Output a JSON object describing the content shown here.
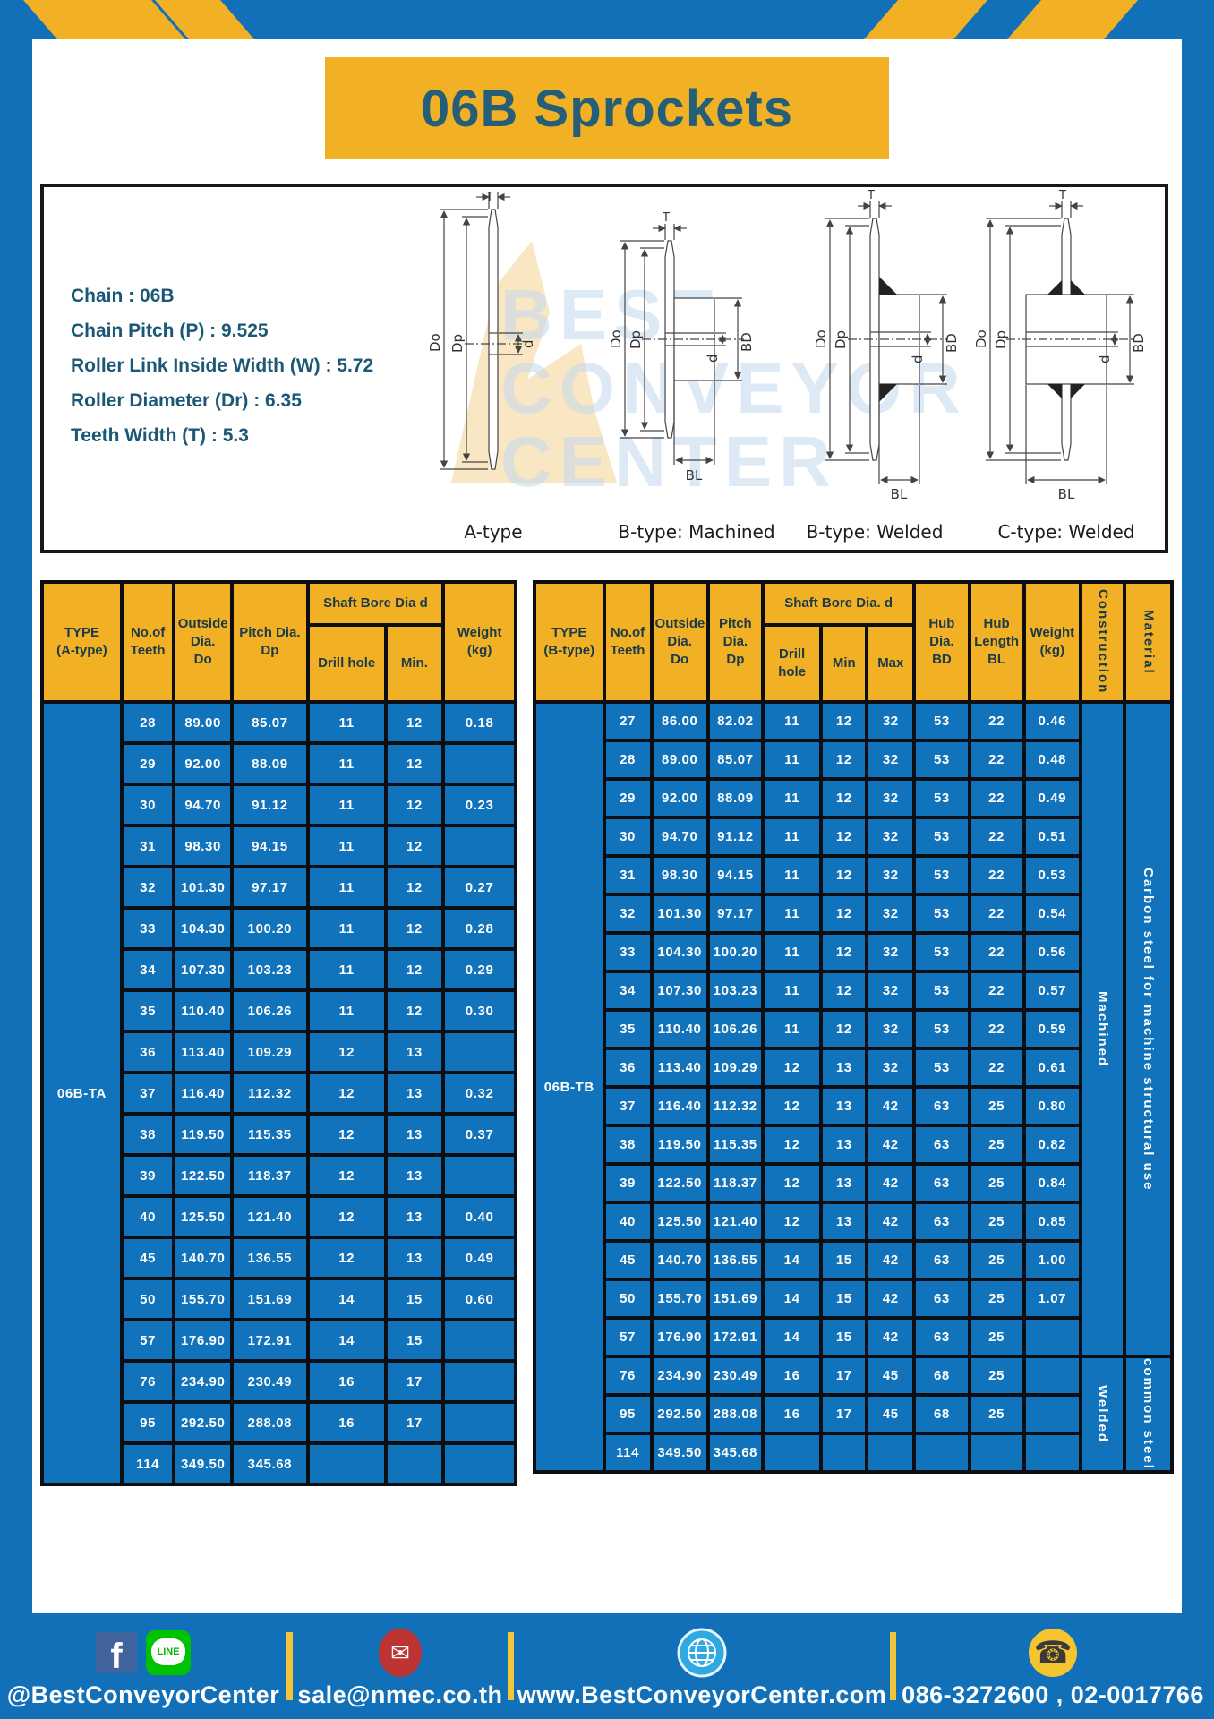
{
  "title": "06B Sprockets",
  "specs": [
    "Chain : 06B",
    "Chain Pitch (P) : 9.525",
    "Roller Link Inside Width (W) : 5.72",
    "Roller Diameter (Dr) : 6.35",
    "Teeth Width (T) : 5.3"
  ],
  "diagrams": {
    "captions": [
      "A-type",
      "B-type: Machined",
      "B-type: Welded",
      "C-type: Welded"
    ],
    "dims": {
      "t": "T",
      "do": "Do",
      "dp": "Dp",
      "d": "d",
      "bd": "BD",
      "bl": "BL"
    },
    "watermark": [
      "BEST",
      "CONVEYOR",
      "CENTER"
    ]
  },
  "table_a": {
    "type_label": "06B-TA",
    "headers": {
      "type": [
        "TYPE",
        "(A-type)"
      ],
      "teeth": [
        "No.of",
        "Teeth"
      ],
      "outside": [
        "Outside",
        "Dia.",
        "Do"
      ],
      "pitch": [
        "Pitch Dia.",
        "Dp"
      ],
      "shaft_bore_group": "Shaft Bore Dia d",
      "drill": "Drill hole",
      "min": "Min.",
      "weight": [
        "Weight",
        "(kg)"
      ]
    },
    "rows": [
      [
        "28",
        "89.00",
        "85.07",
        "11",
        "12",
        "0.18"
      ],
      [
        "29",
        "92.00",
        "88.09",
        "11",
        "12",
        ""
      ],
      [
        "30",
        "94.70",
        "91.12",
        "11",
        "12",
        "0.23"
      ],
      [
        "31",
        "98.30",
        "94.15",
        "11",
        "12",
        ""
      ],
      [
        "32",
        "101.30",
        "97.17",
        "11",
        "12",
        "0.27"
      ],
      [
        "33",
        "104.30",
        "100.20",
        "11",
        "12",
        "0.28"
      ],
      [
        "34",
        "107.30",
        "103.23",
        "11",
        "12",
        "0.29"
      ],
      [
        "35",
        "110.40",
        "106.26",
        "11",
        "12",
        "0.30"
      ],
      [
        "36",
        "113.40",
        "109.29",
        "12",
        "13",
        ""
      ],
      [
        "37",
        "116.40",
        "112.32",
        "12",
        "13",
        "0.32"
      ],
      [
        "38",
        "119.50",
        "115.35",
        "12",
        "13",
        "0.37"
      ],
      [
        "39",
        "122.50",
        "118.37",
        "12",
        "13",
        ""
      ],
      [
        "40",
        "125.50",
        "121.40",
        "12",
        "13",
        "0.40"
      ],
      [
        "45",
        "140.70",
        "136.55",
        "12",
        "13",
        "0.49"
      ],
      [
        "50",
        "155.70",
        "151.69",
        "14",
        "15",
        "0.60"
      ],
      [
        "57",
        "176.90",
        "172.91",
        "14",
        "15",
        ""
      ],
      [
        "76",
        "234.90",
        "230.49",
        "16",
        "17",
        ""
      ],
      [
        "95",
        "292.50",
        "288.08",
        "16",
        "17",
        ""
      ],
      [
        "114",
        "349.50",
        "345.68",
        "",
        "",
        ""
      ]
    ]
  },
  "table_b": {
    "type_label": "06B-TB",
    "headers": {
      "type": [
        "TYPE",
        "(B-type)"
      ],
      "teeth": [
        "No.of",
        "Teeth"
      ],
      "outside": [
        "Outside",
        "Dia.",
        "Do"
      ],
      "pitch": [
        "Pitch",
        "Dia.",
        "Dp"
      ],
      "shaft_bore_group": "Shaft Bore Dia. d",
      "drill": "Drill hole",
      "min": "Min",
      "max": "Max",
      "hub_dia": [
        "Hub",
        "Dia.",
        "BD"
      ],
      "hub_len": [
        "Hub",
        "Length",
        "BL"
      ],
      "weight": [
        "Weight",
        "(kg)"
      ],
      "construction": "Construction",
      "material": "Material"
    },
    "rows": [
      [
        "27",
        "86.00",
        "82.02",
        "11",
        "12",
        "32",
        "53",
        "22",
        "0.46"
      ],
      [
        "28",
        "89.00",
        "85.07",
        "11",
        "12",
        "32",
        "53",
        "22",
        "0.48"
      ],
      [
        "29",
        "92.00",
        "88.09",
        "11",
        "12",
        "32",
        "53",
        "22",
        "0.49"
      ],
      [
        "30",
        "94.70",
        "91.12",
        "11",
        "12",
        "32",
        "53",
        "22",
        "0.51"
      ],
      [
        "31",
        "98.30",
        "94.15",
        "11",
        "12",
        "32",
        "53",
        "22",
        "0.53"
      ],
      [
        "32",
        "101.30",
        "97.17",
        "11",
        "12",
        "32",
        "53",
        "22",
        "0.54"
      ],
      [
        "33",
        "104.30",
        "100.20",
        "11",
        "12",
        "32",
        "53",
        "22",
        "0.56"
      ],
      [
        "34",
        "107.30",
        "103.23",
        "11",
        "12",
        "32",
        "53",
        "22",
        "0.57"
      ],
      [
        "35",
        "110.40",
        "106.26",
        "11",
        "12",
        "32",
        "53",
        "22",
        "0.59"
      ],
      [
        "36",
        "113.40",
        "109.29",
        "12",
        "13",
        "32",
        "53",
        "22",
        "0.61"
      ],
      [
        "37",
        "116.40",
        "112.32",
        "12",
        "13",
        "42",
        "63",
        "25",
        "0.80"
      ],
      [
        "38",
        "119.50",
        "115.35",
        "12",
        "13",
        "42",
        "63",
        "25",
        "0.82"
      ],
      [
        "39",
        "122.50",
        "118.37",
        "12",
        "13",
        "42",
        "63",
        "25",
        "0.84"
      ],
      [
        "40",
        "125.50",
        "121.40",
        "12",
        "13",
        "42",
        "63",
        "25",
        "0.85"
      ],
      [
        "45",
        "140.70",
        "136.55",
        "14",
        "15",
        "42",
        "63",
        "25",
        "1.00"
      ],
      [
        "50",
        "155.70",
        "151.69",
        "14",
        "15",
        "42",
        "63",
        "25",
        "1.07"
      ],
      [
        "57",
        "176.90",
        "172.91",
        "14",
        "15",
        "42",
        "63",
        "25",
        ""
      ],
      [
        "76",
        "234.90",
        "230.49",
        "16",
        "17",
        "45",
        "68",
        "25",
        ""
      ],
      [
        "95",
        "292.50",
        "288.08",
        "16",
        "17",
        "45",
        "68",
        "25",
        ""
      ],
      [
        "114",
        "349.50",
        "345.68",
        "",
        "",
        "",
        "",
        "",
        ""
      ]
    ],
    "construction_spans": [
      {
        "label": "Machined",
        "rows": 17
      },
      {
        "label": "Welded",
        "rows": 3
      }
    ],
    "material_spans": [
      {
        "label": "Carbon steel for machine structural use",
        "rows": 17
      },
      {
        "label": "common steel",
        "rows": 3
      }
    ]
  },
  "footer": {
    "social_label": "@BestConveyorCenter",
    "email": "sale@nmec.co.th",
    "website": "www.BestConveyorCenter.com",
    "phone": "086-3272600 , 02-0017766",
    "line_text": "LINE",
    "fb_letter": "f",
    "mail_glyph": "✉",
    "phone_glyph": "☎"
  },
  "colors": {
    "table_blue": "#1173BC",
    "header_yellow": "#F2B124",
    "frame_blue": "#1270B8",
    "title_text": "#245E79",
    "border_black": "#0C0E12",
    "divider_yellow": "#F0C53A",
    "line_green": "#00C300",
    "facebook_blue": "#41649C",
    "mail_red": "#BE3432",
    "globe_blue": "#2FA9E1",
    "phone_yellow": "#F5C52F"
  }
}
